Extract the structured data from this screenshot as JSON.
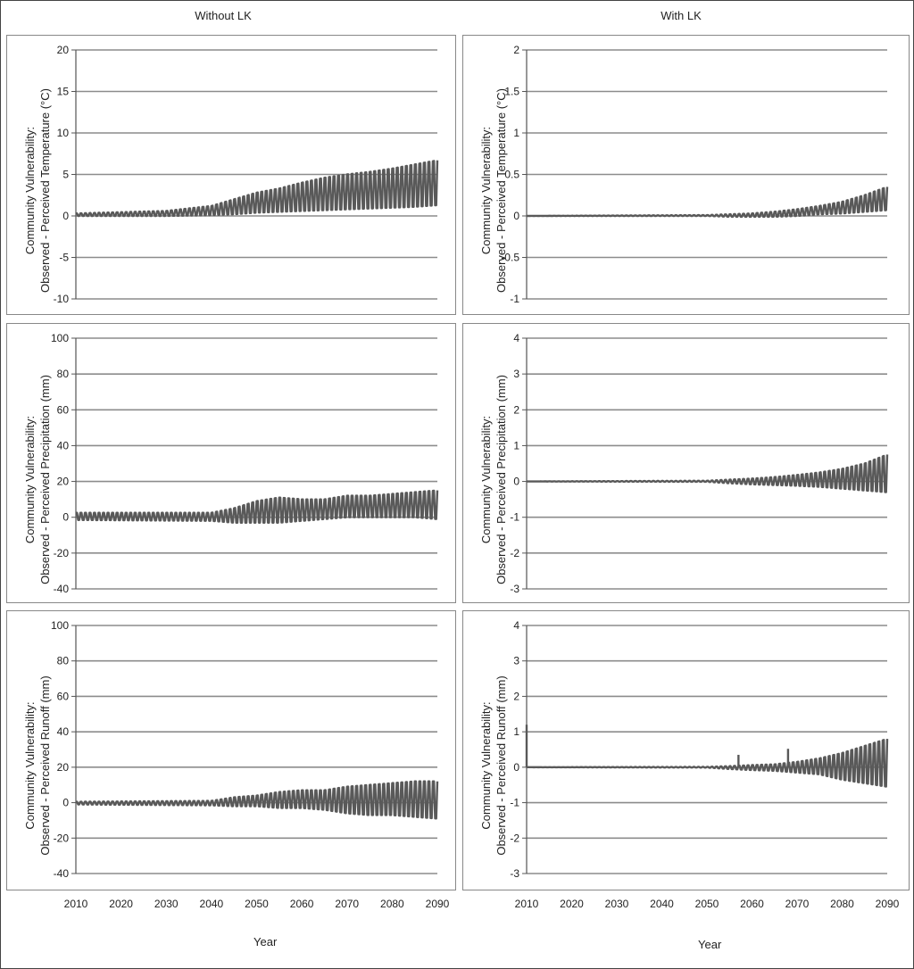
{
  "titles": {
    "left": "Without LK",
    "right": "With LK"
  },
  "x_axis_label": "Year",
  "x_ticks": [
    "2010",
    "2020",
    "2030",
    "2040",
    "2050",
    "2060",
    "2070",
    "2080",
    "2090"
  ],
  "colors": {
    "series": "#595959",
    "grid": "#8c8c8c",
    "axis": "#555555"
  },
  "chart_data": [
    {
      "type": "line",
      "panel": "without-temperature",
      "ylabel": [
        "Community Vulnerability:",
        "Observed - Perceived Temperature (°C)"
      ],
      "ylim": [
        -10,
        20
      ],
      "yticks": [
        -10,
        -5,
        0,
        5,
        10,
        15,
        20
      ],
      "xlim": [
        2010,
        2090
      ],
      "envelope": {
        "x": [
          2010,
          2030,
          2040,
          2045,
          2050,
          2055,
          2060,
          2065,
          2070,
          2075,
          2080,
          2085,
          2090
        ],
        "upper": [
          0.3,
          0.6,
          1.2,
          2.0,
          2.8,
          3.3,
          4.0,
          4.6,
          5.0,
          5.3,
          5.7,
          6.2,
          6.7
        ],
        "lower": [
          0.0,
          0.0,
          0.1,
          0.2,
          0.4,
          0.5,
          0.6,
          0.7,
          0.8,
          0.9,
          1.0,
          1.1,
          1.3
        ]
      }
    },
    {
      "type": "line",
      "panel": "with-temperature",
      "ylabel": [
        "Community Vulnerability:",
        "Observed - Perceived Temperature (°C)"
      ],
      "ylim": [
        -1,
        2
      ],
      "yticks": [
        -1,
        -0.5,
        0,
        0.5,
        1,
        1.5,
        2
      ],
      "xlim": [
        2010,
        2090
      ],
      "envelope": {
        "x": [
          2010,
          2050,
          2055,
          2060,
          2065,
          2070,
          2075,
          2080,
          2085,
          2090
        ],
        "upper": [
          0.0,
          0.01,
          0.02,
          0.03,
          0.05,
          0.08,
          0.12,
          0.17,
          0.25,
          0.35
        ],
        "lower": [
          0.0,
          0.0,
          -0.01,
          -0.01,
          -0.01,
          0.0,
          0.02,
          0.03,
          0.05,
          0.07
        ]
      }
    },
    {
      "type": "line",
      "panel": "without-precipitation",
      "ylabel": [
        "Community Vulnerability:",
        "Observed - Perceived Precipitation (mm)"
      ],
      "ylim": [
        -40,
        100
      ],
      "yticks": [
        -40,
        -20,
        0,
        20,
        40,
        60,
        80,
        100
      ],
      "xlim": [
        2010,
        2090
      ],
      "envelope": {
        "x": [
          2010,
          2040,
          2045,
          2050,
          2055,
          2060,
          2065,
          2070,
          2075,
          2080,
          2085,
          2090
        ],
        "upper": [
          2.5,
          2.5,
          5,
          9,
          11,
          10,
          10,
          12,
          12,
          13,
          14,
          15
        ],
        "lower": [
          -1.5,
          -2,
          -3,
          -3,
          -3,
          -2,
          -1,
          0,
          0,
          0,
          0,
          -1
        ]
      }
    },
    {
      "type": "line",
      "panel": "with-precipitation",
      "ylabel": [
        "Community Vulnerability:",
        "Observed - Perceived Precipitation (mm)"
      ],
      "ylim": [
        -3,
        4
      ],
      "yticks": [
        -3,
        -2,
        -1,
        0,
        1,
        2,
        3,
        4
      ],
      "xlim": [
        2010,
        2090
      ],
      "envelope": {
        "x": [
          2010,
          2050,
          2055,
          2060,
          2065,
          2070,
          2075,
          2080,
          2085,
          2090
        ],
        "upper": [
          0.0,
          0.02,
          0.05,
          0.08,
          0.12,
          0.18,
          0.25,
          0.35,
          0.5,
          0.75
        ],
        "lower": [
          0.0,
          -0.01,
          -0.05,
          -0.08,
          -0.1,
          -0.12,
          -0.15,
          -0.2,
          -0.25,
          -0.3
        ]
      }
    },
    {
      "type": "line",
      "panel": "without-runoff",
      "ylabel": [
        "Community Vulnerability:",
        "Observed - Perceived Runoff (mm)"
      ],
      "ylim": [
        -40,
        100
      ],
      "yticks": [
        -40,
        -20,
        0,
        20,
        40,
        60,
        80,
        100
      ],
      "xlim": [
        2010,
        2090
      ],
      "envelope": {
        "x": [
          2010,
          2040,
          2045,
          2050,
          2055,
          2060,
          2065,
          2070,
          2075,
          2080,
          2085,
          2090
        ],
        "upper": [
          0.5,
          1,
          3,
          4,
          6,
          7,
          7,
          9,
          10,
          11,
          12,
          12
        ],
        "lower": [
          -1,
          -1.5,
          -2,
          -2,
          -3,
          -3,
          -4,
          -6,
          -7,
          -7,
          -8,
          -9
        ]
      }
    },
    {
      "type": "line",
      "panel": "with-runoff",
      "ylabel": [
        "Community Vulnerability:",
        "Observed - Perceived Runoff (mm)"
      ],
      "ylim": [
        -3,
        4
      ],
      "yticks": [
        -3,
        -2,
        -1,
        0,
        1,
        2,
        3,
        4
      ],
      "xlim": [
        2010,
        2090
      ],
      "envelope": {
        "x": [
          2010,
          2050,
          2055,
          2060,
          2065,
          2070,
          2075,
          2080,
          2085,
          2090
        ],
        "upper": [
          0.0,
          0.01,
          0.03,
          0.06,
          0.08,
          0.15,
          0.25,
          0.4,
          0.6,
          0.8
        ],
        "lower": [
          0.0,
          -0.01,
          -0.05,
          -0.08,
          -0.1,
          -0.15,
          -0.2,
          -0.35,
          -0.45,
          -0.55
        ]
      },
      "spikes": [
        {
          "x": 2010,
          "y": 1.2
        },
        {
          "x": 2057,
          "y": 0.35
        },
        {
          "x": 2068,
          "y": 0.52
        }
      ]
    }
  ]
}
